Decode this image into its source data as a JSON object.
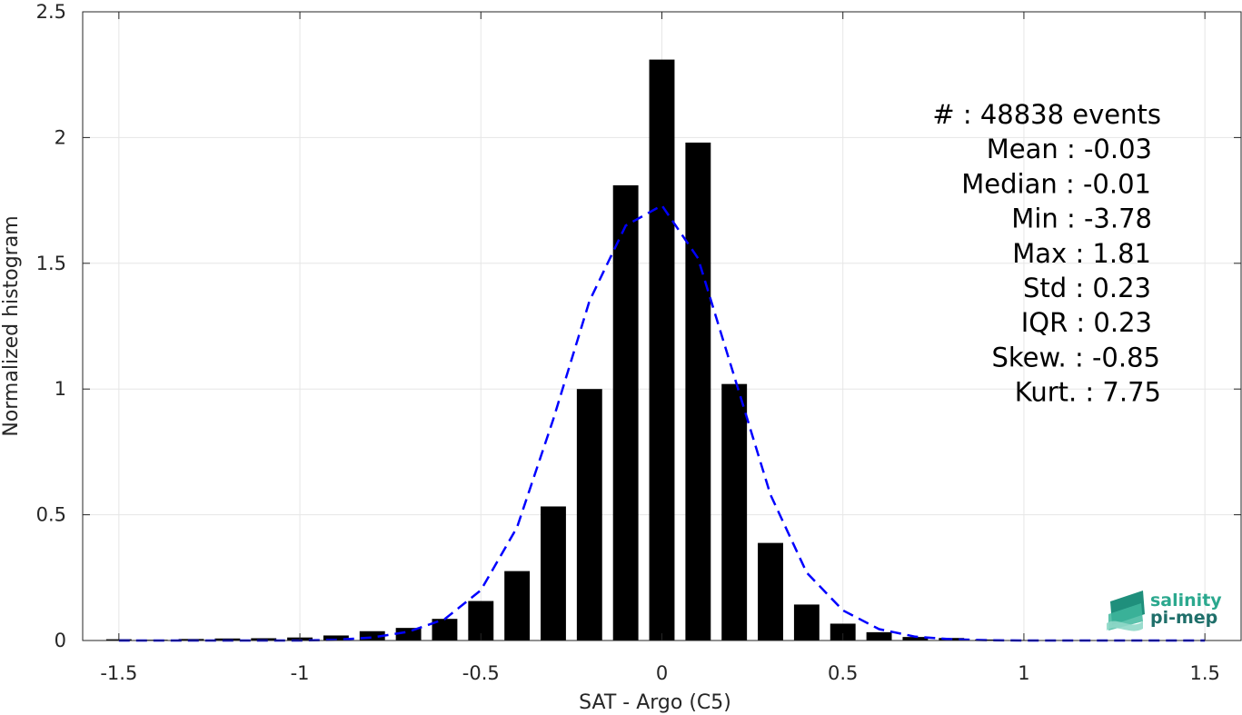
{
  "chart_data": {
    "type": "bar",
    "xlabel": "SAT - Argo (C5)",
    "ylabel": "Normalized histogram",
    "xlim": [
      -1.6,
      1.6
    ],
    "ylim": [
      0,
      2.5
    ],
    "grid": true,
    "xticks": [
      -1.5,
      -1,
      -0.5,
      0,
      0.5,
      1,
      1.5
    ],
    "xtick_labels": [
      "-1.5",
      "-1",
      "-0.5",
      "0",
      "0.5",
      "1",
      "1.5"
    ],
    "yticks": [
      0,
      0.5,
      1,
      1.5,
      2,
      2.5
    ],
    "ytick_labels": [
      "0",
      "0.5",
      "1",
      "1.5",
      "2",
      "2.5"
    ],
    "bar_color": "#000000",
    "series": [
      {
        "type": "bar",
        "x": [
          -1.5,
          -1.4,
          -1.3,
          -1.2,
          -1.1,
          -1.0,
          -0.9,
          -0.8,
          -0.7,
          -0.6,
          -0.5,
          -0.4,
          -0.3,
          -0.2,
          -0.1,
          0.0,
          0.1,
          0.2,
          0.3,
          0.4,
          0.5,
          0.6,
          0.7,
          0.8,
          0.9,
          1.0,
          1.1,
          1.2,
          1.3,
          1.4,
          1.5
        ],
        "values": [
          0.005,
          0.003,
          0.006,
          0.008,
          0.009,
          0.012,
          0.02,
          0.037,
          0.05,
          0.086,
          0.157,
          0.276,
          0.533,
          1.0,
          1.81,
          2.31,
          1.98,
          1.02,
          0.388,
          0.143,
          0.067,
          0.033,
          0.014,
          0.01,
          0.004,
          0.002,
          0.002,
          0.001,
          0.001,
          0.001,
          0.001
        ]
      },
      {
        "type": "line",
        "style": "dashed",
        "color": "#0000ff",
        "x": [
          -1.5,
          -1.4,
          -1.3,
          -1.2,
          -1.1,
          -1.0,
          -0.9,
          -0.8,
          -0.7,
          -0.6,
          -0.5,
          -0.4,
          -0.3,
          -0.2,
          -0.1,
          0.0,
          0.1,
          0.2,
          0.3,
          0.4,
          0.5,
          0.6,
          0.7,
          0.8,
          0.9,
          1.0,
          1.1,
          1.2,
          1.3,
          1.4,
          1.5
        ],
        "values": [
          0.0,
          0.0,
          0.0,
          0.0,
          0.0,
          0.0,
          0.003,
          0.012,
          0.035,
          0.085,
          0.2,
          0.45,
          0.88,
          1.35,
          1.65,
          1.73,
          1.52,
          1.05,
          0.58,
          0.27,
          0.12,
          0.045,
          0.015,
          0.005,
          0.001,
          0.0,
          0.0,
          0.0,
          0.0,
          0.0,
          0.0
        ]
      }
    ]
  },
  "stats": [
    "#  : 48838 events",
    "Mean : -0.03",
    "Median : -0.01",
    "Min : -3.78",
    "Max : 1.81",
    "Std : 0.23",
    "IQR : 0.23",
    "Skew. : -0.85",
    "Kurt. : 7.75"
  ],
  "logo": {
    "line1": "salinity",
    "line2": "pi-mep",
    "color1": "#2ba88e",
    "color2": "#1f6f6a"
  }
}
